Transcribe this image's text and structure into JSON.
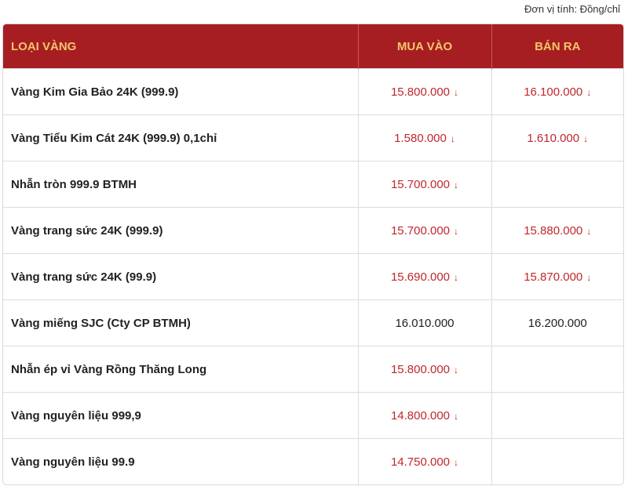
{
  "unit_note": "Đơn vị tính: Đồng/chỉ",
  "table": {
    "headers": [
      "LOẠI VÀNG",
      "MUA VÀO",
      "BÁN RA"
    ],
    "rows": [
      {
        "name": "Vàng Kim Gia Bảo 24K (999.9)",
        "buy": {
          "price": "15.800.000",
          "arrow": "↓"
        },
        "sell": {
          "price": "16.100.000",
          "arrow": "↓"
        }
      },
      {
        "name": "Vàng Tiểu Kim Cát 24K (999.9) 0,1chỉ",
        "buy": {
          "price": "1.580.000",
          "arrow": "↓"
        },
        "sell": {
          "price": "1.610.000",
          "arrow": "↓"
        }
      },
      {
        "name": "Nhẫn tròn 999.9 BTMH",
        "buy": {
          "price": "15.700.000",
          "arrow": "↓"
        },
        "sell": null
      },
      {
        "name": "Vàng trang sức 24K (999.9)",
        "buy": {
          "price": "15.700.000",
          "arrow": "↓"
        },
        "sell": {
          "price": "15.880.000",
          "arrow": "↓"
        }
      },
      {
        "name": "Vàng trang sức 24K (99.9)",
        "buy": {
          "price": "15.690.000",
          "arrow": "↓"
        },
        "sell": {
          "price": "15.870.000",
          "arrow": "↓"
        }
      },
      {
        "name": "Vàng miếng SJC (Cty CP BTMH)",
        "buy": {
          "price": "16.010.000"
        },
        "sell": {
          "price": "16.200.000"
        }
      },
      {
        "name": "Nhẫn ép vỉ Vàng Rồng Thăng Long",
        "buy": {
          "price": "15.800.000",
          "arrow": "↓"
        },
        "sell": null
      },
      {
        "name": "Vàng nguyên liệu 999,9",
        "buy": {
          "price": "14.800.000",
          "arrow": "↓"
        },
        "sell": null
      },
      {
        "name": "Vàng nguyên liệu 99.9",
        "buy": {
          "price": "14.750.000",
          "arrow": "↓"
        },
        "sell": null
      }
    ]
  }
}
